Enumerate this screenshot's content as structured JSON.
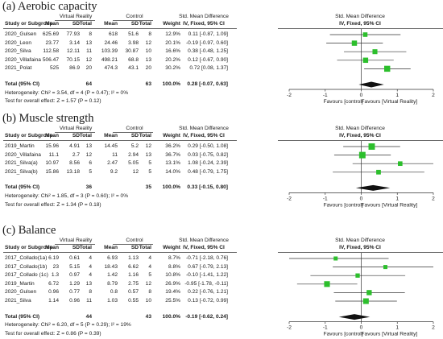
{
  "chart_data": [
    {
      "type": "forest",
      "title": "(a) Aerobic capacity",
      "group1_label": "Virtual Reality",
      "group2_label": "Control",
      "columns": [
        "Study or Subgroup",
        "Mean",
        "SD",
        "Total",
        "Mean",
        "SD",
        "Total",
        "Weight",
        "IV, Fixed, 95% CI"
      ],
      "effect_header_left": "Std. Mean Difference",
      "effect_header_right": "Std. Mean Difference",
      "method_left": "IV, Fixed, 95% CI",
      "method_right": "IV, Fixed, 95% CI",
      "studies": [
        {
          "name": "2020_Gulsen",
          "vr_mean": "625.69",
          "vr_sd": "77.93",
          "vr_n": "8",
          "c_mean": "618",
          "c_sd": "51.6",
          "c_n": "8",
          "weight": "12.9%",
          "ci_text": "0.11 [-0.87, 1.09]",
          "est": 0.11,
          "lo": -0.87,
          "hi": 1.09,
          "w": 12.9
        },
        {
          "name": "2020_Leon",
          "vr_mean": "23.77",
          "vr_sd": "3.14",
          "vr_n": "13",
          "c_mean": "24.46",
          "c_sd": "3.98",
          "c_n": "12",
          "weight": "20.1%",
          "ci_text": "-0.19 [-0.97, 0.60]",
          "est": -0.19,
          "lo": -0.97,
          "hi": 0.6,
          "w": 20.1
        },
        {
          "name": "2020_Silva",
          "vr_mean": "112.58",
          "vr_sd": "12.11",
          "vr_n": "11",
          "c_mean": "103.39",
          "c_sd": "30.87",
          "c_n": "10",
          "weight": "16.6%",
          "ci_text": "0.38 [-0.48, 1.25]",
          "est": 0.38,
          "lo": -0.48,
          "hi": 1.25,
          "w": 16.6
        },
        {
          "name": "2020_Villafaina",
          "vr_mean": "506.47",
          "vr_sd": "70.15",
          "vr_n": "12",
          "c_mean": "498.21",
          "c_sd": "68.8",
          "c_n": "13",
          "weight": "20.2%",
          "ci_text": "0.12 [-0.67, 0.90]",
          "est": 0.12,
          "lo": -0.67,
          "hi": 0.9,
          "w": 20.2
        },
        {
          "name": "2021_Polat",
          "vr_mean": "525",
          "vr_sd": "86.9",
          "vr_n": "20",
          "c_mean": "474.3",
          "c_sd": "43.1",
          "c_n": "20",
          "weight": "30.2%",
          "ci_text": "0.72 [0.08, 1.37]",
          "est": 0.72,
          "lo": 0.08,
          "hi": 1.37,
          "w": 30.2
        }
      ],
      "total": {
        "label": "Total (95% CI)",
        "vr_n": "64",
        "c_n": "63",
        "weight": "100.0%",
        "ci_text": "0.28 [-0.07, 0.63]",
        "est": 0.28,
        "lo": -0.07,
        "hi": 0.63
      },
      "heterogeneity": "Heterogeneity: Chi² = 3.54, df = 4 (P = 0.47); I² = 0%",
      "overall_effect": "Test for overall effect: Z = 1.57 (P = 0.12)",
      "xlim": [
        -2,
        2
      ],
      "xticks": [
        -2,
        -1,
        0,
        1,
        2
      ],
      "xtick_labels": [
        "-2",
        "-1",
        "0",
        "1",
        "2"
      ],
      "favours_left": "Favours [control]",
      "favours_right": "Favours [Virtual Reality]"
    },
    {
      "type": "forest",
      "title": "(b) Muscle strength",
      "group1_label": "Virtual Reality",
      "group2_label": "Control",
      "columns": [
        "Study or Subgroup",
        "Mean",
        "SD",
        "Total",
        "Mean",
        "SD",
        "Total",
        "Weight",
        "IV, Fixed, 95% CI"
      ],
      "effect_header_left": "Std. Mean Difference",
      "effect_header_right": "Std. Mean Difference",
      "method_left": "IV, Fixed, 95% CI",
      "method_right": "IV, Fixed, 95% CI",
      "studies": [
        {
          "name": "2019_Martin",
          "vr_mean": "15.96",
          "vr_sd": "4.91",
          "vr_n": "13",
          "c_mean": "14.45",
          "c_sd": "5.2",
          "c_n": "12",
          "weight": "36.2%",
          "ci_text": "0.29 [-0.50, 1.08]",
          "est": 0.29,
          "lo": -0.5,
          "hi": 1.08,
          "w": 36.2
        },
        {
          "name": "2020_Villafaina",
          "vr_mean": "11.1",
          "vr_sd": "2.7",
          "vr_n": "12",
          "c_mean": "11",
          "c_sd": "2.94",
          "c_n": "13",
          "weight": "36.7%",
          "ci_text": "0.03 [-0.75, 0.82]",
          "est": 0.03,
          "lo": -0.75,
          "hi": 0.82,
          "w": 36.7
        },
        {
          "name": "2021_Silva(a)",
          "vr_mean": "10.97",
          "vr_sd": "8.56",
          "vr_n": "6",
          "c_mean": "2.47",
          "c_sd": "5.05",
          "c_n": "5",
          "weight": "13.1%",
          "ci_text": "1.08 [-0.24, 2.39]",
          "est": 1.08,
          "lo": -0.24,
          "hi": 2.39,
          "w": 13.1
        },
        {
          "name": "2021_Silva(b)",
          "vr_mean": "15.86",
          "vr_sd": "13.18",
          "vr_n": "5",
          "c_mean": "9.2",
          "c_sd": "12",
          "c_n": "5",
          "weight": "14.0%",
          "ci_text": "0.48 [-0.79, 1.75]",
          "est": 0.48,
          "lo": -0.79,
          "hi": 1.75,
          "w": 14.0
        }
      ],
      "total": {
        "label": "Total (95% CI)",
        "vr_n": "36",
        "c_n": "35",
        "weight": "100.0%",
        "ci_text": "0.33 [-0.15, 0.80]",
        "est": 0.33,
        "lo": -0.15,
        "hi": 0.8
      },
      "heterogeneity": "Heterogeneity: Chi² = 1.85, df = 3 (P = 0.60); I² = 0%",
      "overall_effect": "Test for overall effect: Z = 1.34 (P = 0.18)",
      "xlim": [
        -2,
        2
      ],
      "xticks": [
        -2,
        -1,
        0,
        1,
        2
      ],
      "xtick_labels": [
        "-2",
        "-1",
        "0",
        "1",
        "2"
      ],
      "favours_left": "Favours [control]",
      "favours_right": "Favours [Virtual Reality]"
    },
    {
      "type": "forest",
      "title": "(c) Balance",
      "group1_label": "Virtual Reality",
      "group2_label": "Control",
      "columns": [
        "Study or Subgroup",
        "Mean",
        "SD",
        "Total",
        "Mean",
        "SD",
        "Total",
        "Weight",
        "IV, Fixed, 95% CI"
      ],
      "effect_header_left": "Std. Mean Difference",
      "effect_header_right": "Std. Mean Difference",
      "method_left": "IV, Fixed, 95% CI",
      "method_right": "IV, Fixed, 95% CI",
      "studies": [
        {
          "name": "2017_Collado(1a)",
          "vr_mean": "6.19",
          "vr_sd": "0.61",
          "vr_n": "4",
          "c_mean": "6.93",
          "c_sd": "1.13",
          "c_n": "4",
          "weight": "8.7%",
          "ci_text": "-0.71 [-2.18, 0.76]",
          "est": -0.71,
          "lo": -2.18,
          "hi": 0.76,
          "w": 8.7
        },
        {
          "name": "2017_Collado(1b)",
          "vr_mean": "23",
          "vr_sd": "5.15",
          "vr_n": "4",
          "c_mean": "18.43",
          "c_sd": "6.62",
          "c_n": "4",
          "weight": "8.8%",
          "ci_text": "0.67 [-0.79, 2.13]",
          "est": 0.67,
          "lo": -0.79,
          "hi": 2.13,
          "w": 8.8
        },
        {
          "name": "2017_Collado (1c)",
          "vr_mean": "1.3",
          "vr_sd": "0.97",
          "vr_n": "4",
          "c_mean": "1.42",
          "c_sd": "1.16",
          "c_n": "5",
          "weight": "10.8%",
          "ci_text": "-0.10 [-1.41, 1.22]",
          "est": -0.1,
          "lo": -1.41,
          "hi": 1.22,
          "w": 10.8
        },
        {
          "name": "2019_Martin",
          "vr_mean": "6.72",
          "vr_sd": "1.29",
          "vr_n": "13",
          "c_mean": "8.79",
          "c_sd": "2.75",
          "c_n": "12",
          "weight": "26.9%",
          "ci_text": "-0.95 [-1.78, -0.11]",
          "est": -0.95,
          "lo": -1.78,
          "hi": -0.11,
          "w": 26.9
        },
        {
          "name": "2020_Gulsen",
          "vr_mean": "0.96",
          "vr_sd": "0.77",
          "vr_n": "8",
          "c_mean": "0.8",
          "c_sd": "0.57",
          "c_n": "8",
          "weight": "19.4%",
          "ci_text": "0.22 [-0.76, 1.21]",
          "est": 0.22,
          "lo": -0.76,
          "hi": 1.21,
          "w": 19.4
        },
        {
          "name": "2021_Silva",
          "vr_mean": "1.14",
          "vr_sd": "0.96",
          "vr_n": "11",
          "c_mean": "1.03",
          "c_sd": "0.55",
          "c_n": "10",
          "weight": "25.5%",
          "ci_text": "0.13 [-0.72, 0.99]",
          "est": 0.13,
          "lo": -0.72,
          "hi": 0.99,
          "w": 25.5
        }
      ],
      "total": {
        "label": "Total (95% CI)",
        "vr_n": "44",
        "c_n": "43",
        "weight": "100.0%",
        "ci_text": "-0.19 [-0.62, 0.24]",
        "est": -0.19,
        "lo": -0.62,
        "hi": 0.24
      },
      "heterogeneity": "Heterogeneity: Chi² = 6.20, df = 5 (P = 0.29); I² = 19%",
      "overall_effect": "Test for overall effect: Z = 0.86 (P = 0.39)",
      "xlim": [
        -2,
        2
      ],
      "xticks": [
        -2,
        -1,
        0,
        1,
        2
      ],
      "xtick_labels": [
        "-2",
        "-1",
        "0",
        "1",
        "2"
      ],
      "favours_left": "Favours [control]",
      "favours_right": "Favours [Virtual Reality]"
    }
  ],
  "colors": {
    "marker": "#2cbf2c",
    "diamond": "#111111",
    "rule": "#6a6a6a",
    "text": "#1a1a1a"
  }
}
